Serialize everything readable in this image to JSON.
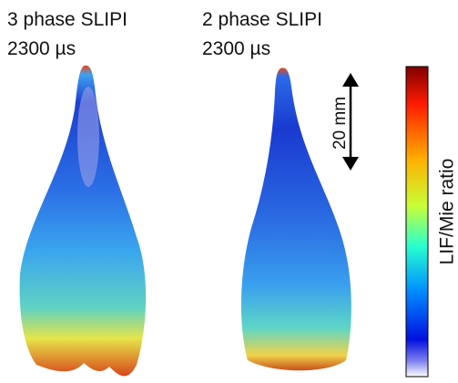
{
  "panels": [
    {
      "title": "3 phase SLIPI",
      "time": "2300 µs"
    },
    {
      "title": "2 phase SLIPI",
      "time": "2300 µs"
    }
  ],
  "scale_bar": "20 mm",
  "colorbar": {
    "label": "LIF/Mie ratio"
  }
}
